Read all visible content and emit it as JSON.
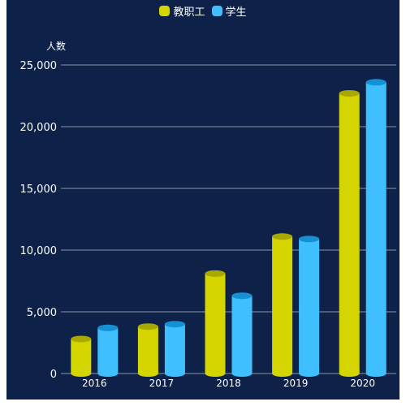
{
  "chart_data": {
    "type": "bar",
    "style": "cylinder",
    "categories": [
      "2016",
      "2017",
      "2018",
      "2019",
      "2020"
    ],
    "series": [
      {
        "name": "教职工",
        "values": [
          2800,
          3800,
          8100,
          11100,
          22700
        ],
        "color": "#d4d400",
        "cap_color": "#a8a800"
      },
      {
        "name": "学生",
        "values": [
          3700,
          4000,
          6300,
          10900,
          23600
        ],
        "color": "#40bfff",
        "cap_color": "#1690d4"
      }
    ],
    "ylabel": "人数",
    "ylim": [
      0,
      25000
    ],
    "yticks": [
      "0",
      "5,000",
      "10,000",
      "15,000",
      "20,000",
      "25,000"
    ],
    "ytick_values": [
      0,
      5000,
      10000,
      15000,
      20000,
      25000
    ],
    "grid": true,
    "legend_position": "top-center",
    "background": "#0e2249",
    "grid_color": "#8a94a8"
  }
}
